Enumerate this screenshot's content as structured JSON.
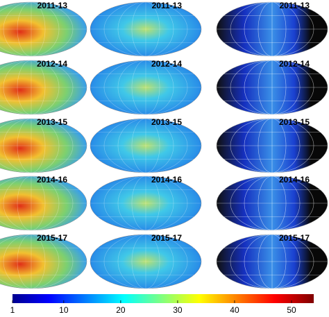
{
  "panels": [
    {
      "label": "2011-13"
    },
    {
      "label": "2012-14"
    },
    {
      "label": "2013-15"
    },
    {
      "label": "2014-16"
    },
    {
      "label": "2015-17"
    }
  ],
  "colorbar": {
    "ticks": [
      1,
      10,
      20,
      30,
      40,
      50
    ]
  }
}
